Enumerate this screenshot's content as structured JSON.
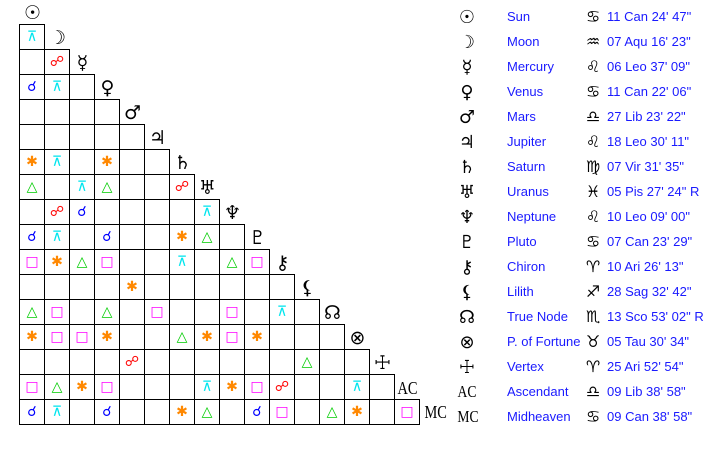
{
  "bodies": [
    {
      "glyph": "☉",
      "name": "Sun",
      "sign_glyph": "♋",
      "position": "11 Can 24' 47\""
    },
    {
      "glyph": "☽",
      "name": "Moon",
      "sign_glyph": "♒",
      "position": "07 Aqu 16' 23\""
    },
    {
      "glyph": "☿",
      "name": "Mercury",
      "sign_glyph": "♌",
      "position": "06 Leo 37' 09\""
    },
    {
      "glyph": "♀",
      "name": "Venus",
      "sign_glyph": "♋",
      "position": "11 Can 22' 06\""
    },
    {
      "glyph": "♂",
      "name": "Mars",
      "sign_glyph": "♎",
      "position": "27 Lib 23' 22\""
    },
    {
      "glyph": "♃",
      "name": "Jupiter",
      "sign_glyph": "♌",
      "position": "18 Leo 30' 11\""
    },
    {
      "glyph": "♄",
      "name": "Saturn",
      "sign_glyph": "♍",
      "position": "07 Vir 31' 35\""
    },
    {
      "glyph": "♅",
      "name": "Uranus",
      "sign_glyph": "♓",
      "position": "05 Pis 27' 24\" R"
    },
    {
      "glyph": "♆",
      "name": "Neptune",
      "sign_glyph": "♌",
      "position": "10 Leo 09' 00\""
    },
    {
      "glyph": "♇",
      "name": "Pluto",
      "sign_glyph": "♋",
      "position": "07 Can 23' 29\""
    },
    {
      "glyph": "⚷",
      "name": "Chiron",
      "sign_glyph": "♈",
      "position": "10 Ari 26' 13\""
    },
    {
      "glyph": "⚸",
      "name": "Lilith",
      "sign_glyph": "♐",
      "position": "28 Sag 32' 42\""
    },
    {
      "glyph": "☊",
      "name": "True Node",
      "sign_glyph": "♏",
      "position": "13 Sco 53' 02\" R"
    },
    {
      "glyph": "⊗",
      "name": "P. of Fortune",
      "sign_glyph": "♉",
      "position": "05 Tau 30' 34\""
    },
    {
      "glyph": "☩",
      "name": "Vertex",
      "sign_glyph": "♈",
      "position": "25 Ari 52' 54\""
    },
    {
      "glyph": "AC",
      "name": "Ascendant",
      "sign_glyph": "♎",
      "position": "09 Lib 38' 58\""
    },
    {
      "glyph": "MC",
      "name": "Midheaven",
      "sign_glyph": "♋",
      "position": "09 Can 38' 58\""
    }
  ],
  "aspect_types": {
    "C": {
      "name": "conjunction",
      "glyph": "☌",
      "color": "#0000ff"
    },
    "O": {
      "name": "opposition",
      "glyph": "☍",
      "color": "#ff0000"
    },
    "T": {
      "name": "trine",
      "glyph": "△",
      "color": "#00cc00"
    },
    "S": {
      "name": "sextile",
      "glyph": "✱",
      "color": "#ff8800"
    },
    "Q": {
      "name": "square",
      "glyph": "□",
      "color": "#ff00ff"
    },
    "X": {
      "name": "quincunx",
      "glyph": "⊼",
      "color": "#00e5ee"
    }
  },
  "aspect_grid": [
    [
      "X"
    ],
    [
      "",
      "O"
    ],
    [
      "C",
      "X",
      ""
    ],
    [
      "",
      "",
      "",
      ""
    ],
    [
      "",
      "",
      "",
      "",
      ""
    ],
    [
      "S",
      "X",
      "",
      "S",
      "",
      ""
    ],
    [
      "T",
      "",
      "X",
      "T",
      "",
      "",
      "O"
    ],
    [
      "",
      "O",
      "C",
      "",
      "",
      "",
      "",
      "X"
    ],
    [
      "C",
      "X",
      "",
      "C",
      "",
      "",
      "S",
      "T",
      ""
    ],
    [
      "Q",
      "S",
      "T",
      "Q",
      "",
      "",
      "X",
      "",
      "T",
      "Q"
    ],
    [
      "",
      "",
      "",
      "",
      "S",
      "",
      "",
      "",
      "",
      "",
      ""
    ],
    [
      "T",
      "Q",
      "",
      "T",
      "",
      "Q",
      "",
      "",
      "Q",
      "",
      "X",
      ""
    ],
    [
      "S",
      "Q",
      "Q",
      "S",
      "",
      "",
      "T",
      "S",
      "Q",
      "S",
      "",
      "",
      ""
    ],
    [
      "",
      "",
      "",
      "",
      "O",
      "",
      "",
      "",
      "",
      "",
      "",
      "T",
      "",
      ""
    ],
    [
      "Q",
      "T",
      "S",
      "Q",
      "",
      "",
      "",
      "X",
      "S",
      "Q",
      "O",
      "",
      "",
      "X",
      ""
    ],
    [
      "C",
      "X",
      "",
      "C",
      "",
      "",
      "S",
      "T",
      "",
      "C",
      "Q",
      "",
      "T",
      "S",
      "",
      "Q"
    ]
  ]
}
